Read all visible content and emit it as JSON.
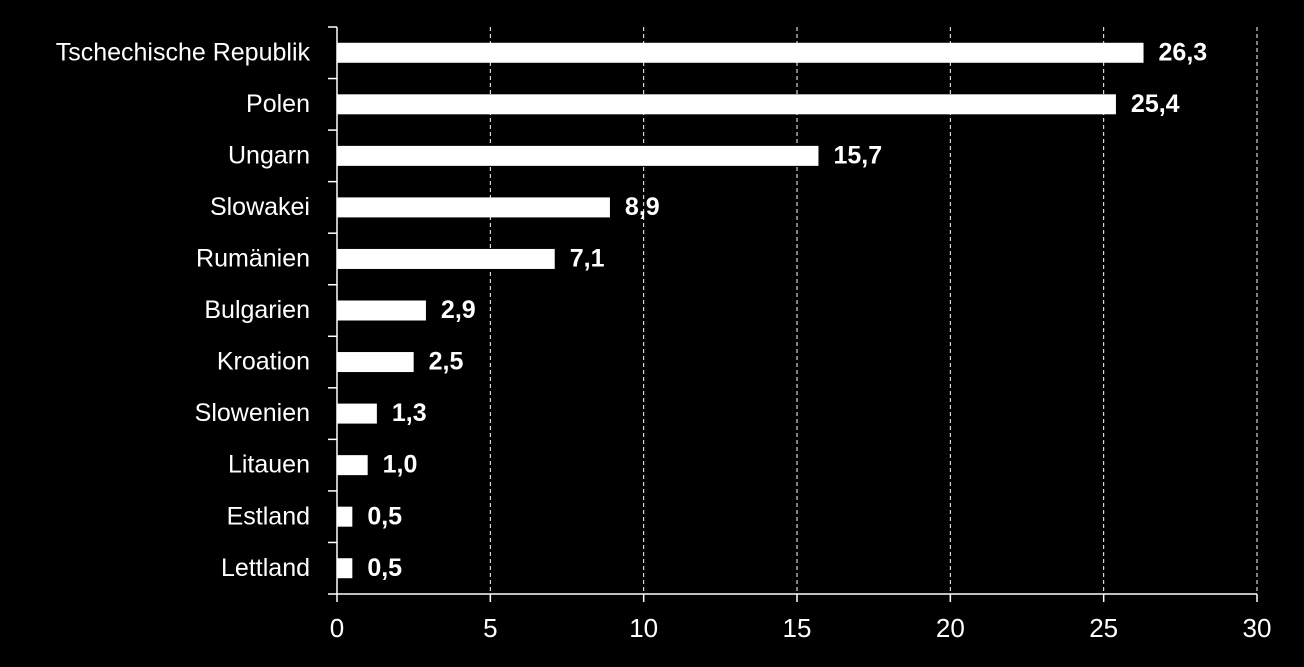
{
  "chart_data": {
    "type": "barh",
    "categories": [
      "Tschechische Republik",
      "Polen",
      "Ungarn",
      "Slowakei",
      "Rumänien",
      "Bulgarien",
      "Kroation",
      "Slowenien",
      "Litauen",
      "Estland",
      "Lettland"
    ],
    "values": [
      26.3,
      25.4,
      15.7,
      8.9,
      7.1,
      2.9,
      2.5,
      1.3,
      1.0,
      0.5,
      0.5
    ],
    "value_labels": [
      "26,3",
      "25,4",
      "15,7",
      "8,9",
      "7,1",
      "2,9",
      "2,5",
      "1,3",
      "1,0",
      "0,5",
      "0,5"
    ],
    "color": "#ffffff",
    "xlim": [
      0,
      30
    ],
    "xticks": [
      0,
      5,
      10,
      15,
      20,
      25,
      30
    ],
    "grid": true
  }
}
